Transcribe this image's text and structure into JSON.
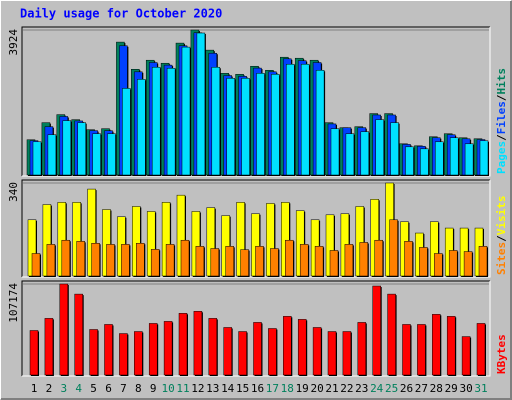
{
  "title": "Daily usage for October 2020",
  "legend_separator": "/",
  "categories": [
    "1",
    "2",
    "3",
    "4",
    "5",
    "6",
    "7",
    "8",
    "9",
    "10",
    "11",
    "12",
    "13",
    "14",
    "15",
    "16",
    "17",
    "18",
    "19",
    "20",
    "21",
    "22",
    "23",
    "24",
    "25",
    "26",
    "27",
    "28",
    "29",
    "30",
    "31"
  ],
  "category_colors": [
    "#000000",
    "#000000",
    "#00805c",
    "#00805c",
    "#000000",
    "#000000",
    "#000000",
    "#000000",
    "#000000",
    "#00805c",
    "#00805c",
    "#000000",
    "#000000",
    "#000000",
    "#000000",
    "#000000",
    "#00805c",
    "#00805c",
    "#000000",
    "#000000",
    "#000000",
    "#000000",
    "#000000",
    "#00805c",
    "#00805c",
    "#000000",
    "#000000",
    "#000000",
    "#000000",
    "#000000",
    "#00805c"
  ],
  "chart_data": [
    {
      "type": "bar",
      "ylim": [
        0,
        3924
      ],
      "yticks": [
        3924
      ],
      "series": [
        {
          "name": "Hits",
          "color": "#00805c",
          "values": [
            974,
            1434,
            1650,
            1515,
            1245,
            1272,
            3599,
            2869,
            3112,
            3031,
            3572,
            3924,
            3383,
            2760,
            2733,
            2950,
            2842,
            3193,
            3166,
            3112,
            1434,
            1299,
            1326,
            1678,
            1678,
            866,
            812,
            1055,
            1137,
            1028,
            1001
          ]
        },
        {
          "name": "Files",
          "color": "#0040ff",
          "values": [
            950,
            1326,
            1600,
            1480,
            1220,
            1218,
            3500,
            2800,
            3050,
            2980,
            3500,
            3850,
            3300,
            2700,
            2680,
            2900,
            2800,
            3150,
            3100,
            3050,
            1400,
            1299,
            1300,
            1640,
            1640,
            850,
            800,
            1030,
            1110,
            1000,
            980
          ]
        },
        {
          "name": "Pages",
          "color": "#00e0ff",
          "values": [
            920,
            1110,
            1488,
            1434,
            1137,
            1137,
            2354,
            2598,
            2923,
            2896,
            3464,
            3843,
            2923,
            2625,
            2625,
            2760,
            2733,
            3004,
            3004,
            2842,
            1272,
            1137,
            1191,
            1515,
            1434,
            785,
            731,
            920,
            1028,
            866,
            947
          ]
        }
      ]
    },
    {
      "type": "bar",
      "ylim": [
        0,
        340
      ],
      "yticks": [
        340
      ],
      "series": [
        {
          "name": "Visits",
          "color": "#ffff00",
          "values": [
            207,
            262,
            270,
            270,
            318,
            244,
            218,
            255,
            237,
            270,
            296,
            237,
            251,
            222,
            270,
            229,
            266,
            270,
            240,
            207,
            225,
            229,
            255,
            281,
            340,
            200,
            159,
            200,
            177,
            177,
            177
          ]
        },
        {
          "name": "Sites",
          "color": "#ff8000",
          "values": [
            85,
            118,
            133,
            129,
            122,
            118,
            118,
            122,
            100,
            118,
            133,
            111,
            103,
            111,
            99,
            111,
            103,
            133,
            118,
            111,
            96,
            118,
            125,
            133,
            207,
            129,
            107,
            85,
            96,
            92,
            111
          ]
        }
      ]
    },
    {
      "type": "bar",
      "ylim": [
        0,
        107174
      ],
      "yticks": [
        107174
      ],
      "series": [
        {
          "name": "KBytes",
          "color": "#ff0000",
          "values": [
            53000,
            67130,
            107174,
            95400,
            54180,
            60060,
            49460,
            51820,
            61240,
            63600,
            73020,
            75370,
            67130,
            56530,
            51820,
            62420,
            55350,
            69490,
            65950,
            56530,
            51820,
            51820,
            62420,
            104820,
            95400,
            60060,
            60060,
            71840,
            69490,
            45930,
            61240
          ]
        }
      ]
    }
  ]
}
